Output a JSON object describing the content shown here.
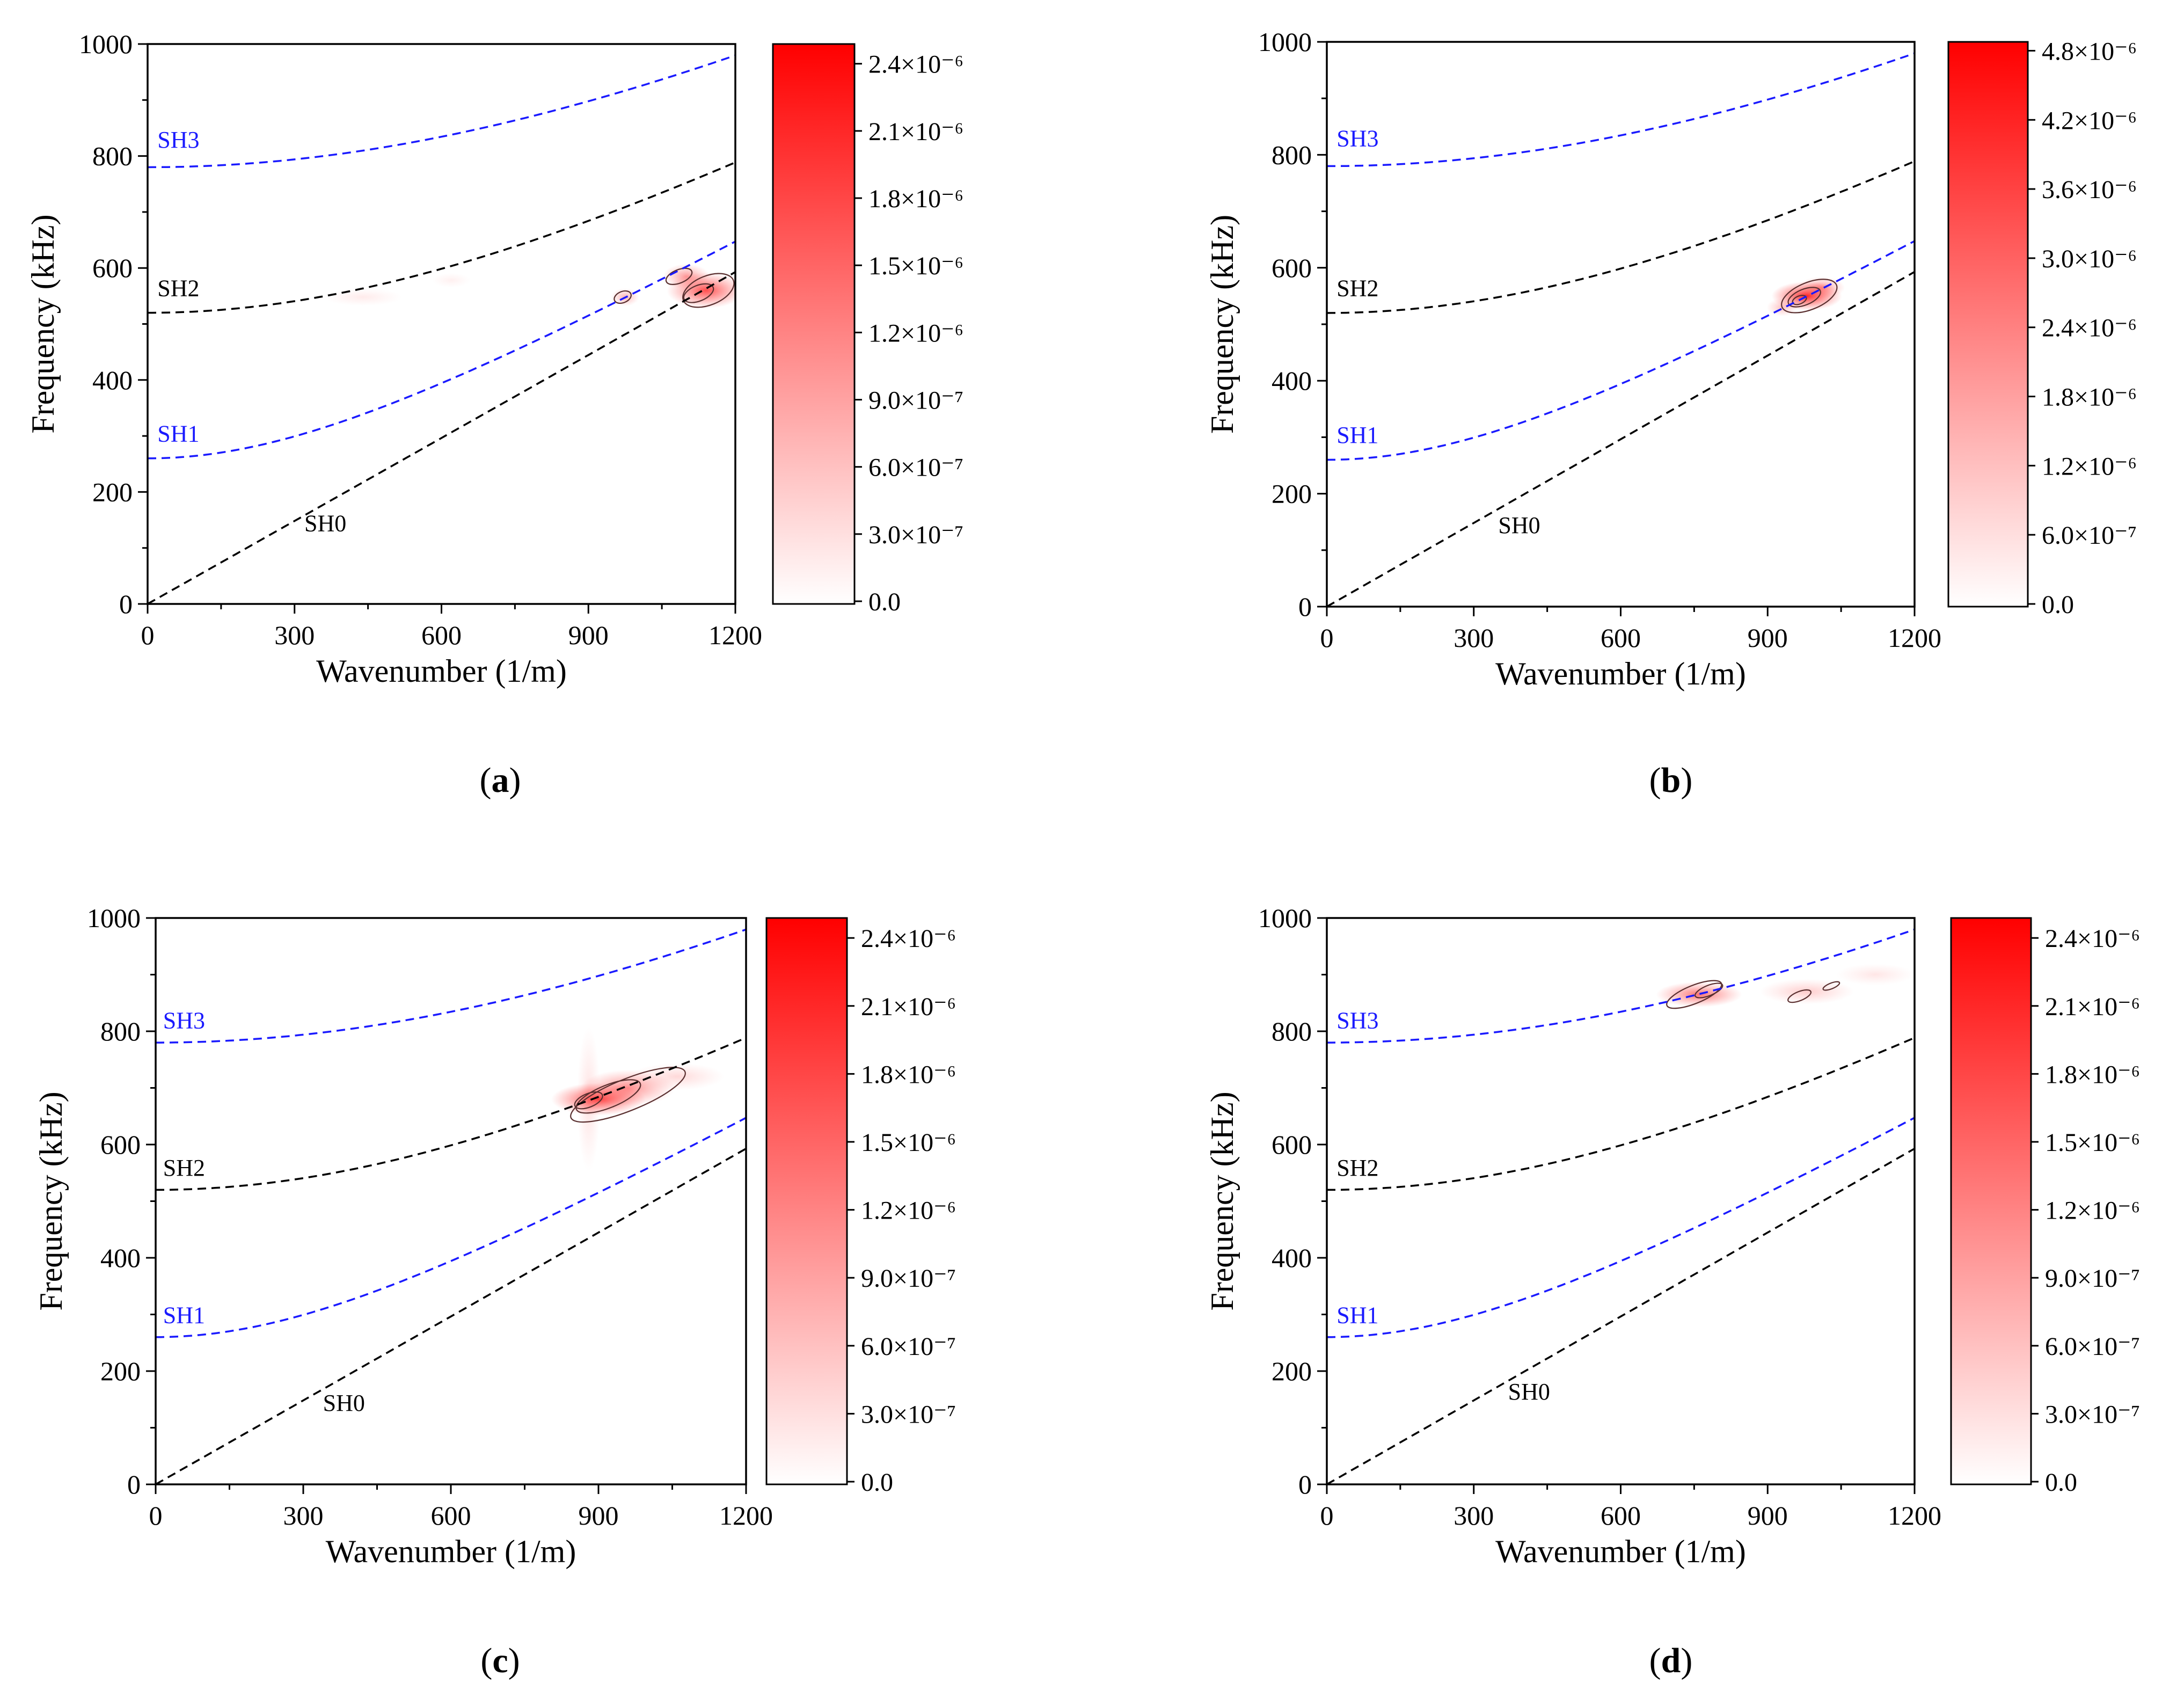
{
  "chart_data": [
    {
      "type": "heatmap",
      "panel_label": "a",
      "xlabel": "Wavenumber (1/m)",
      "ylabel": "Frequency (kHz)",
      "xlim": [
        0,
        1200
      ],
      "ylim": [
        0,
        1000
      ],
      "xticks": [
        "0",
        "300",
        "600",
        "900",
        "1200"
      ],
      "yticks": [
        "0",
        "200",
        "400",
        "600",
        "800",
        "1000"
      ],
      "colorbar": {
        "ticks": [
          "0.0",
          "3.0×10⁻⁷",
          "6.0×10⁻⁷",
          "9.0×10⁻⁷",
          "1.2×10⁻⁶",
          "1.5×10⁻⁶",
          "1.8×10⁻⁶",
          "2.1×10⁻⁶",
          "2.4×10⁻⁶"
        ],
        "min": 0,
        "max": 2.5e-06,
        "color_low": "#ffffff",
        "color_high": "#ff0000"
      },
      "mode_labels": [
        {
          "text": "SH3",
          "x": 20,
          "y": 815,
          "color": "#1a1aff"
        },
        {
          "text": "SH2",
          "x": 20,
          "y": 550,
          "color": "#000000"
        },
        {
          "text": "SH1",
          "x": 20,
          "y": 290,
          "color": "#1a1aff"
        },
        {
          "text": "SH0",
          "x": 320,
          "y": 130,
          "color": "#000000"
        }
      ],
      "blobs": [
        {
          "x": 1140,
          "y": 560,
          "sx": 50,
          "sy": 20,
          "amp": 0.7
        },
        {
          "x": 1100,
          "y": 585,
          "sx": 30,
          "sy": 14,
          "amp": 0.4
        },
        {
          "x": 975,
          "y": 548,
          "sx": 18,
          "sy": 10,
          "amp": 0.3
        },
        {
          "x": 440,
          "y": 548,
          "sx": 50,
          "sy": 10,
          "amp": 0.08
        },
        {
          "x": 620,
          "y": 578,
          "sx": 25,
          "sy": 8,
          "amp": 0.06
        }
      ],
      "contours": [
        {
          "x": 1145,
          "y": 560,
          "rx": 55,
          "ry": 26
        },
        {
          "x": 1125,
          "y": 555,
          "rx": 32,
          "ry": 14
        },
        {
          "x": 1085,
          "y": 585,
          "rx": 28,
          "ry": 12
        },
        {
          "x": 970,
          "y": 548,
          "rx": 18,
          "ry": 10
        }
      ]
    },
    {
      "type": "heatmap",
      "panel_label": "b",
      "xlabel": "Wavenumber (1/m)",
      "ylabel": "Frequency (kHz)",
      "xlim": [
        0,
        1200
      ],
      "ylim": [
        0,
        1000
      ],
      "xticks": [
        "0",
        "300",
        "600",
        "900",
        "1200"
      ],
      "yticks": [
        "0",
        "200",
        "400",
        "600",
        "800",
        "1000"
      ],
      "colorbar": {
        "ticks": [
          "0.0",
          "6.0×10⁻⁷",
          "1.2×10⁻⁶",
          "1.8×10⁻⁶",
          "2.4×10⁻⁶",
          "3.0×10⁻⁶",
          "3.6×10⁻⁶",
          "4.2×10⁻⁶",
          "4.8×10⁻⁶"
        ],
        "min": 0,
        "max": 4.9e-06,
        "color_low": "#ffffff",
        "color_high": "#ff0000"
      },
      "mode_labels": [
        {
          "text": "SH3",
          "x": 20,
          "y": 815,
          "color": "#1a1aff"
        },
        {
          "text": "SH2",
          "x": 20,
          "y": 550,
          "color": "#000000"
        },
        {
          "text": "SH1",
          "x": 20,
          "y": 290,
          "color": "#1a1aff"
        },
        {
          "text": "SH0",
          "x": 350,
          "y": 130,
          "color": "#000000"
        }
      ],
      "blobs": [
        {
          "x": 980,
          "y": 550,
          "sx": 45,
          "sy": 16,
          "amp": 0.85
        },
        {
          "x": 1010,
          "y": 565,
          "sx": 30,
          "sy": 12,
          "amp": 0.4
        },
        {
          "x": 930,
          "y": 530,
          "sx": 20,
          "sy": 10,
          "amp": 0.25
        }
      ],
      "contours": [
        {
          "x": 985,
          "y": 550,
          "rx": 60,
          "ry": 24
        },
        {
          "x": 975,
          "y": 548,
          "rx": 35,
          "ry": 14
        },
        {
          "x": 965,
          "y": 543,
          "rx": 15,
          "ry": 7
        }
      ]
    },
    {
      "type": "heatmap",
      "panel_label": "c",
      "xlabel": "Wavenumber (1/m)",
      "ylabel": "Frequency (kHz)",
      "xlim": [
        0,
        1200
      ],
      "ylim": [
        0,
        1000
      ],
      "xticks": [
        "0",
        "300",
        "600",
        "900",
        "1200"
      ],
      "yticks": [
        "0",
        "200",
        "400",
        "600",
        "800",
        "1000"
      ],
      "colorbar": {
        "ticks": [
          "0.0",
          "3.0×10⁻⁷",
          "6.0×10⁻⁷",
          "9.0×10⁻⁷",
          "1.2×10⁻⁶",
          "1.5×10⁻⁶",
          "1.8×10⁻⁶",
          "2.1×10⁻⁶",
          "2.4×10⁻⁶"
        ],
        "min": 0,
        "max": 2.5e-06,
        "color_low": "#ffffff",
        "color_high": "#ff0000"
      },
      "mode_labels": [
        {
          "text": "SH3",
          "x": 15,
          "y": 805,
          "color": "#1a1aff"
        },
        {
          "text": "SH2",
          "x": 15,
          "y": 545,
          "color": "#000000"
        },
        {
          "text": "SH1",
          "x": 15,
          "y": 285,
          "color": "#1a1aff"
        },
        {
          "text": "SH0",
          "x": 340,
          "y": 130,
          "color": "#000000"
        }
      ],
      "blobs": [
        {
          "x": 900,
          "y": 680,
          "sx": 60,
          "sy": 18,
          "amp": 0.75
        },
        {
          "x": 960,
          "y": 700,
          "sx": 60,
          "sy": 20,
          "amp": 0.45
        },
        {
          "x": 1060,
          "y": 720,
          "sx": 60,
          "sy": 15,
          "amp": 0.15
        },
        {
          "x": 880,
          "y": 680,
          "sx": 15,
          "sy": 80,
          "amp": 0.12
        }
      ],
      "contours": [
        {
          "x": 960,
          "y": 688,
          "rx": 125,
          "ry": 28
        },
        {
          "x": 920,
          "y": 685,
          "rx": 70,
          "ry": 20
        },
        {
          "x": 880,
          "y": 678,
          "rx": 30,
          "ry": 12
        }
      ]
    },
    {
      "type": "heatmap",
      "panel_label": "d",
      "xlabel": "Wavenumber (1/m)",
      "ylabel": "Frequency (kHz)",
      "xlim": [
        0,
        1200
      ],
      "ylim": [
        0,
        1000
      ],
      "xticks": [
        "0",
        "300",
        "600",
        "900",
        "1200"
      ],
      "yticks": [
        "0",
        "200",
        "400",
        "600",
        "800",
        "1000"
      ],
      "colorbar": {
        "ticks": [
          "0.0",
          "3.0×10⁻⁷",
          "6.0×10⁻⁷",
          "9.0×10⁻⁷",
          "1.2×10⁻⁶",
          "1.5×10⁻⁶",
          "1.8×10⁻⁶",
          "2.1×10⁻⁶",
          "2.4×10⁻⁶"
        ],
        "min": 0,
        "max": 2.5e-06,
        "color_low": "#ffffff",
        "color_high": "#ff0000"
      },
      "mode_labels": [
        {
          "text": "SH3",
          "x": 20,
          "y": 805,
          "color": "#1a1aff"
        },
        {
          "text": "SH2",
          "x": 20,
          "y": 545,
          "color": "#000000"
        },
        {
          "text": "SH1",
          "x": 20,
          "y": 285,
          "color": "#1a1aff"
        },
        {
          "text": "SH0",
          "x": 370,
          "y": 150,
          "color": "#000000"
        }
      ],
      "blobs": [
        {
          "x": 760,
          "y": 865,
          "sx": 55,
          "sy": 14,
          "amp": 0.55
        },
        {
          "x": 980,
          "y": 870,
          "sx": 60,
          "sy": 14,
          "amp": 0.2
        },
        {
          "x": 1120,
          "y": 900,
          "sx": 50,
          "sy": 12,
          "amp": 0.1
        }
      ],
      "contours": [
        {
          "x": 750,
          "y": 865,
          "rx": 60,
          "ry": 16
        },
        {
          "x": 780,
          "y": 872,
          "rx": 30,
          "ry": 9
        },
        {
          "x": 965,
          "y": 862,
          "rx": 25,
          "ry": 8
        },
        {
          "x": 1030,
          "y": 880,
          "rx": 18,
          "ry": 5
        }
      ]
    }
  ]
}
